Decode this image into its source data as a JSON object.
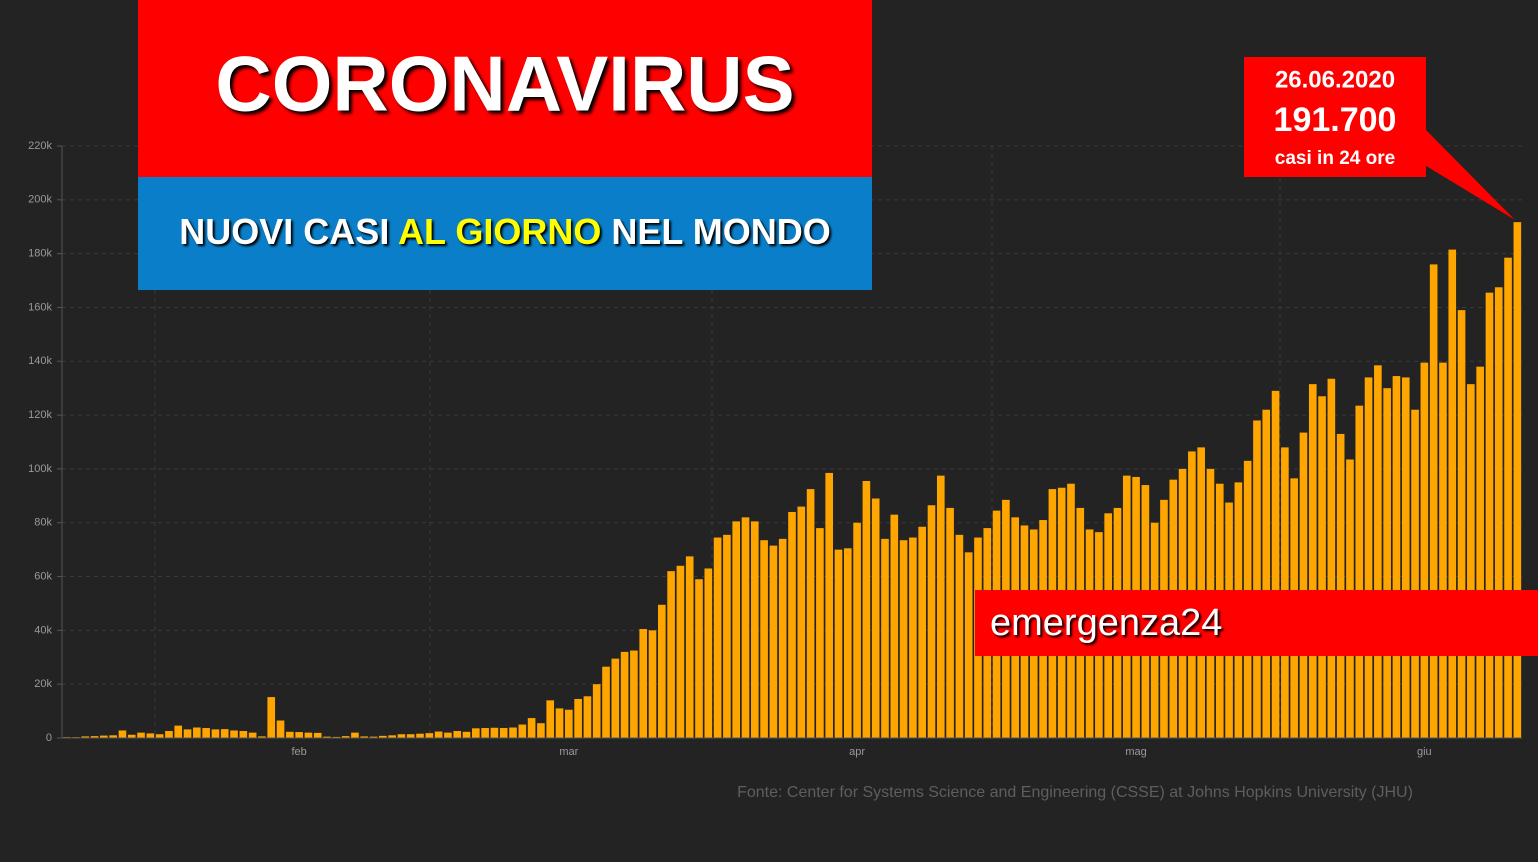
{
  "chart_data": {
    "type": "bar",
    "title": "CORONAVIRUS",
    "subtitle": {
      "before": "NUOVI CASI",
      "highlight": "AL GIORNO",
      "after": "NEL MONDO"
    },
    "annotation": {
      "date": "26.06.2020",
      "value": "191.700",
      "note": "casi in 24 ore"
    },
    "watermark": "emergenza24",
    "source": "Fonte: Center for Systems Science and Engineering (CSSE) at Johns Hopkins University (JHU)",
    "color": "#ffa500",
    "grid": true,
    "ylim": [
      0,
      220000
    ],
    "yticks": [
      {
        "value": 0,
        "label": "0"
      },
      {
        "value": 20000,
        "label": "20k"
      },
      {
        "value": 40000,
        "label": "40k"
      },
      {
        "value": 60000,
        "label": "60k"
      },
      {
        "value": 80000,
        "label": "80k"
      },
      {
        "value": 100000,
        "label": "100k"
      },
      {
        "value": 120000,
        "label": "120k"
      },
      {
        "value": 140000,
        "label": "140k"
      },
      {
        "value": 160000,
        "label": "160k"
      },
      {
        "value": 180000,
        "label": "180k"
      },
      {
        "value": 200000,
        "label": "200k"
      },
      {
        "value": 220000,
        "label": "220k"
      }
    ],
    "categories": [
      null,
      null,
      null,
      null,
      null,
      null,
      null,
      null,
      null,
      null,
      null,
      null,
      null,
      null,
      null,
      null,
      null,
      null,
      null,
      null,
      null,
      null,
      null,
      null,
      null,
      "feb",
      null,
      null,
      null,
      null,
      null,
      null,
      null,
      null,
      null,
      null,
      null,
      null,
      null,
      null,
      null,
      null,
      null,
      null,
      null,
      null,
      null,
      null,
      null,
      null,
      null,
      null,
      null,
      null,
      "mar",
      null,
      null,
      null,
      null,
      null,
      null,
      null,
      null,
      null,
      null,
      null,
      null,
      null,
      null,
      null,
      null,
      null,
      null,
      null,
      null,
      null,
      null,
      null,
      null,
      null,
      null,
      null,
      null,
      null,
      null,
      "apr",
      null,
      null,
      null,
      null,
      null,
      null,
      null,
      null,
      null,
      null,
      null,
      null,
      null,
      null,
      null,
      null,
      null,
      null,
      null,
      null,
      null,
      null,
      null,
      null,
      null,
      null,
      null,
      null,
      null,
      "mag",
      null,
      null,
      null,
      null,
      null,
      null,
      null,
      null,
      null,
      null,
      null,
      null,
      null,
      null,
      null,
      null,
      null,
      null,
      null,
      null,
      null,
      null,
      null,
      null,
      null,
      null,
      null,
      null,
      null,
      null,
      "giu",
      null,
      null,
      null,
      null,
      null,
      null,
      null,
      null,
      null,
      null
    ],
    "values": [
      300,
      300,
      600,
      700,
      900,
      1000,
      2800,
      1200,
      2000,
      1700,
      1400,
      2600,
      4600,
      3200,
      3900,
      3700,
      3200,
      3300,
      2800,
      2600,
      2000,
      600,
      15200,
      6500,
      2300,
      2200,
      2000,
      1900,
      500,
      400,
      700,
      2000,
      600,
      500,
      800,
      1000,
      1400,
      1400,
      1600,
      1800,
      2400,
      2000,
      2600,
      2300,
      3600,
      3700,
      3800,
      3700,
      3900,
      5000,
      7400,
      5500,
      14000,
      11000,
      10500,
      14500,
      15500,
      20000,
      26500,
      29500,
      32000,
      32500,
      40500,
      40000,
      49500,
      62000,
      64000,
      67500,
      59000,
      63000,
      74500,
      75500,
      80500,
      82000,
      80500,
      73500,
      71500,
      74000,
      84000,
      86000,
      92500,
      78000,
      98500,
      70000,
      70500,
      80000,
      95500,
      89000,
      74000,
      83000,
      73500,
      74500,
      78500,
      86500,
      97500,
      85500,
      75500,
      69000,
      74500,
      78000,
      84500,
      88500,
      82000,
      79000,
      77500,
      81000,
      92500,
      93000,
      94500,
      85500,
      77500,
      76500,
      83500,
      85500,
      97500,
      97000,
      94000,
      80000,
      88500,
      96000,
      100000,
      106500,
      108000,
      100000,
      94500,
      87500,
      95000,
      103000,
      118000,
      122000,
      129000,
      108000,
      96500,
      113500,
      131500,
      127000,
      133500,
      113000,
      103500,
      123500,
      134000,
      138500,
      130000,
      134500,
      134000,
      122000,
      139500,
      176000,
      139500,
      181500,
      159000,
      131500,
      138000,
      165500,
      167500,
      178500,
      191700
    ]
  }
}
